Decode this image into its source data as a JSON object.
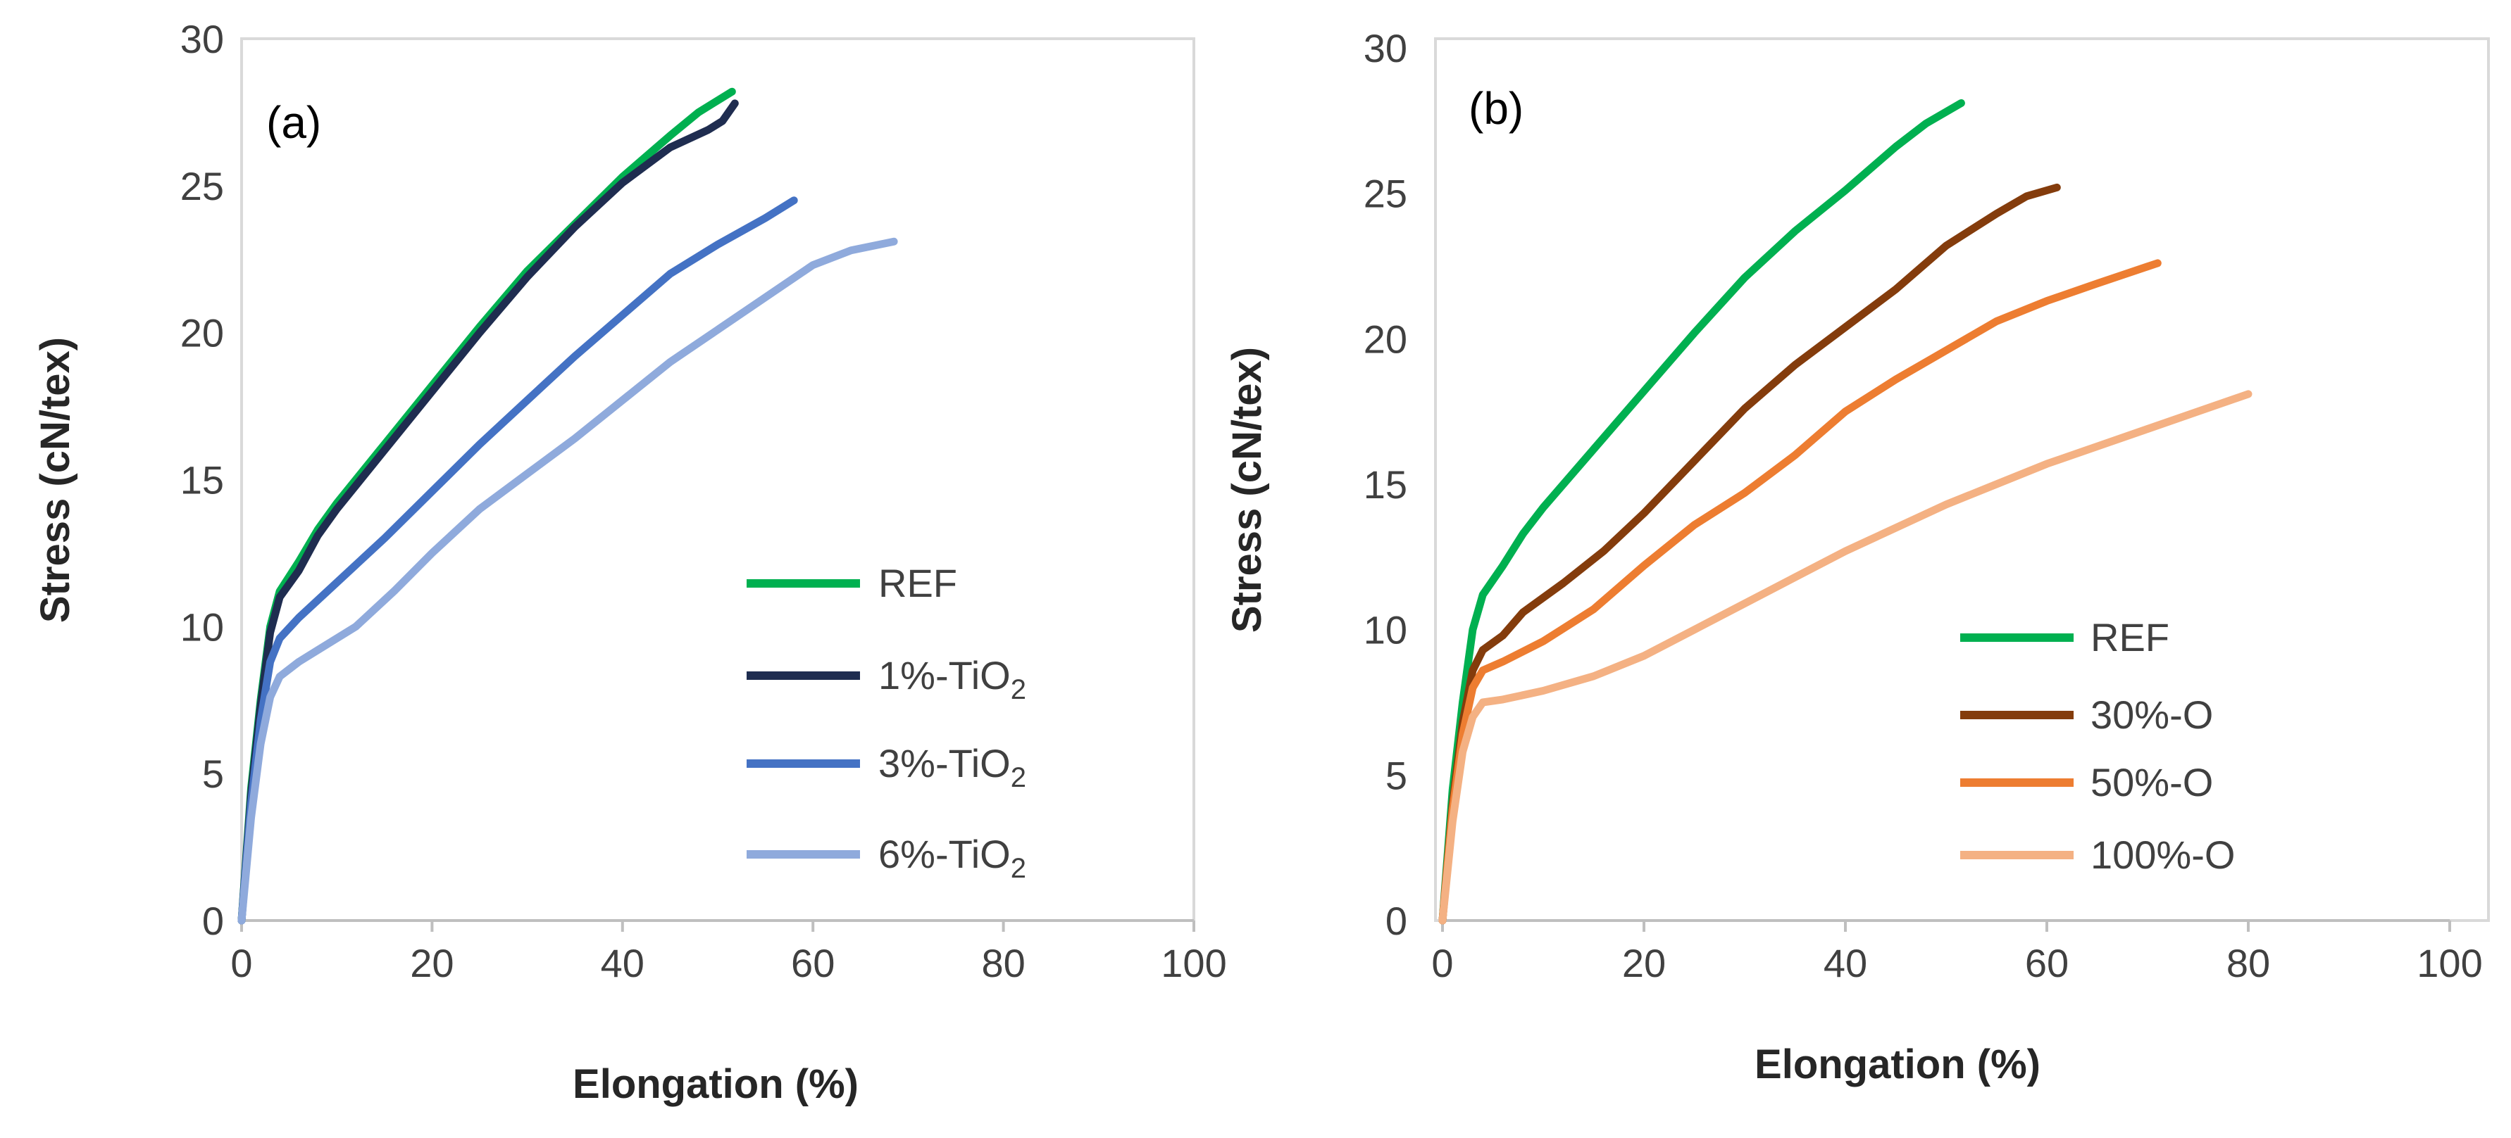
{
  "chart_data": [
    {
      "type": "line",
      "panel_label": "(a)",
      "xlabel": "Elongation (%)",
      "ylabel": "Stress (cN/tex)",
      "xlim": [
        0,
        100
      ],
      "ylim": [
        0,
        30
      ],
      "xticks": [
        0,
        20,
        40,
        60,
        80,
        100
      ],
      "yticks": [
        0,
        5,
        10,
        15,
        20,
        25,
        30
      ],
      "legend_position": "bottom-right",
      "series": [
        {
          "name": "REF",
          "name_main": "REF",
          "name_sub": "",
          "color": "#00b050",
          "points": [
            [
              0,
              0
            ],
            [
              1,
              4.5
            ],
            [
              2,
              7.5
            ],
            [
              3,
              10
            ],
            [
              4,
              11.2
            ],
            [
              6,
              12.2
            ],
            [
              8,
              13.3
            ],
            [
              10,
              14.2
            ],
            [
              15,
              16.2
            ],
            [
              20,
              18.2
            ],
            [
              25,
              20.2
            ],
            [
              30,
              22.1
            ],
            [
              35,
              23.7
            ],
            [
              40,
              25.3
            ],
            [
              45,
              26.7
            ],
            [
              48,
              27.5
            ],
            [
              51.5,
              28.2
            ]
          ]
        },
        {
          "name": "1%-TiO2",
          "name_main": "1%-TiO",
          "name_sub": "2",
          "color": "#1f2d50",
          "points": [
            [
              0,
              0
            ],
            [
              1,
              4.3
            ],
            [
              2,
              7.3
            ],
            [
              3,
              9.8
            ],
            [
              4,
              11
            ],
            [
              6,
              11.9
            ],
            [
              8,
              13.1
            ],
            [
              10,
              14
            ],
            [
              15,
              16
            ],
            [
              20,
              18
            ],
            [
              25,
              20
            ],
            [
              30,
              21.9
            ],
            [
              35,
              23.6
            ],
            [
              40,
              25.1
            ],
            [
              45,
              26.3
            ],
            [
              49,
              26.9
            ],
            [
              50.5,
              27.2
            ],
            [
              51.8,
              27.8
            ]
          ]
        },
        {
          "name": "3%-TiO2",
          "name_main": "3%-TiO",
          "name_sub": "2",
          "color": "#4472c4",
          "points": [
            [
              0,
              0
            ],
            [
              1,
              4
            ],
            [
              2,
              6.8
            ],
            [
              3,
              8.8
            ],
            [
              4,
              9.6
            ],
            [
              6,
              10.3
            ],
            [
              10,
              11.5
            ],
            [
              15,
              13
            ],
            [
              20,
              14.6
            ],
            [
              25,
              16.2
            ],
            [
              30,
              17.7
            ],
            [
              35,
              19.2
            ],
            [
              40,
              20.6
            ],
            [
              45,
              22
            ],
            [
              50,
              23
            ],
            [
              55,
              23.9
            ],
            [
              58,
              24.5
            ]
          ]
        },
        {
          "name": "6%-TiO2",
          "name_main": "6%-TiO",
          "name_sub": "2",
          "color": "#8faadc",
          "points": [
            [
              0,
              0
            ],
            [
              1,
              3.5
            ],
            [
              2,
              6
            ],
            [
              3,
              7.6
            ],
            [
              4,
              8.3
            ],
            [
              6,
              8.8
            ],
            [
              8,
              9.2
            ],
            [
              12,
              10
            ],
            [
              16,
              11.2
            ],
            [
              20,
              12.5
            ],
            [
              25,
              14
            ],
            [
              30,
              15.2
            ],
            [
              35,
              16.4
            ],
            [
              40,
              17.7
            ],
            [
              45,
              19
            ],
            [
              50,
              20.1
            ],
            [
              55,
              21.2
            ],
            [
              60,
              22.3
            ],
            [
              64,
              22.8
            ],
            [
              68.5,
              23.1
            ]
          ]
        }
      ]
    },
    {
      "type": "line",
      "panel_label": "(b)",
      "xlabel": "Elongation (%)",
      "ylabel": "Stress (cN/tex)",
      "xlim": [
        0,
        100
      ],
      "ylim": [
        0,
        30
      ],
      "xticks": [
        0,
        20,
        40,
        60,
        80,
        100
      ],
      "yticks": [
        0,
        5,
        10,
        15,
        20,
        25,
        30
      ],
      "legend_position": "bottom-right",
      "series": [
        {
          "name": "REF",
          "name_main": "REF",
          "name_sub": "",
          "color": "#00b050",
          "points": [
            [
              0,
              0
            ],
            [
              1,
              4.5
            ],
            [
              2,
              7.5
            ],
            [
              3,
              10
            ],
            [
              4,
              11.2
            ],
            [
              6,
              12.2
            ],
            [
              8,
              13.3
            ],
            [
              10,
              14.2
            ],
            [
              15,
              16.2
            ],
            [
              20,
              18.2
            ],
            [
              25,
              20.2
            ],
            [
              30,
              22.1
            ],
            [
              35,
              23.7
            ],
            [
              40,
              25.1
            ],
            [
              45,
              26.6
            ],
            [
              48,
              27.4
            ],
            [
              51.5,
              28.1
            ]
          ]
        },
        {
          "name": "30%-O",
          "name_main": "30%-O",
          "name_sub": "",
          "color": "#843c0c",
          "points": [
            [
              0,
              0
            ],
            [
              1,
              4
            ],
            [
              2,
              6.8
            ],
            [
              3,
              8.6
            ],
            [
              4,
              9.3
            ],
            [
              6,
              9.8
            ],
            [
              8,
              10.6
            ],
            [
              12,
              11.6
            ],
            [
              16,
              12.7
            ],
            [
              20,
              14
            ],
            [
              25,
              15.8
            ],
            [
              30,
              17.6
            ],
            [
              35,
              19.1
            ],
            [
              40,
              20.4
            ],
            [
              45,
              21.7
            ],
            [
              50,
              23.2
            ],
            [
              55,
              24.3
            ],
            [
              58,
              24.9
            ],
            [
              61,
              25.2
            ]
          ]
        },
        {
          "name": "50%-O",
          "name_main": "50%-O",
          "name_sub": "",
          "color": "#ed7d31",
          "points": [
            [
              0,
              0
            ],
            [
              1,
              3.8
            ],
            [
              2,
              6.4
            ],
            [
              3,
              8
            ],
            [
              4,
              8.6
            ],
            [
              6,
              8.9
            ],
            [
              10,
              9.6
            ],
            [
              15,
              10.7
            ],
            [
              20,
              12.2
            ],
            [
              25,
              13.6
            ],
            [
              30,
              14.7
            ],
            [
              35,
              16
            ],
            [
              40,
              17.5
            ],
            [
              45,
              18.6
            ],
            [
              50,
              19.6
            ],
            [
              55,
              20.6
            ],
            [
              60,
              21.3
            ],
            [
              65,
              21.9
            ],
            [
              71,
              22.6
            ]
          ]
        },
        {
          "name": "100%-O",
          "name_main": "100%-O",
          "name_sub": "",
          "color": "#f4b183",
          "points": [
            [
              0,
              0
            ],
            [
              1,
              3.4
            ],
            [
              2,
              5.8
            ],
            [
              3,
              7
            ],
            [
              4,
              7.5
            ],
            [
              6,
              7.6
            ],
            [
              10,
              7.9
            ],
            [
              15,
              8.4
            ],
            [
              20,
              9.1
            ],
            [
              25,
              10
            ],
            [
              30,
              10.9
            ],
            [
              35,
              11.8
            ],
            [
              40,
              12.7
            ],
            [
              45,
              13.5
            ],
            [
              50,
              14.3
            ],
            [
              55,
              15
            ],
            [
              60,
              15.7
            ],
            [
              65,
              16.3
            ],
            [
              70,
              16.9
            ],
            [
              75,
              17.5
            ],
            [
              80,
              18.1
            ]
          ]
        }
      ]
    }
  ]
}
